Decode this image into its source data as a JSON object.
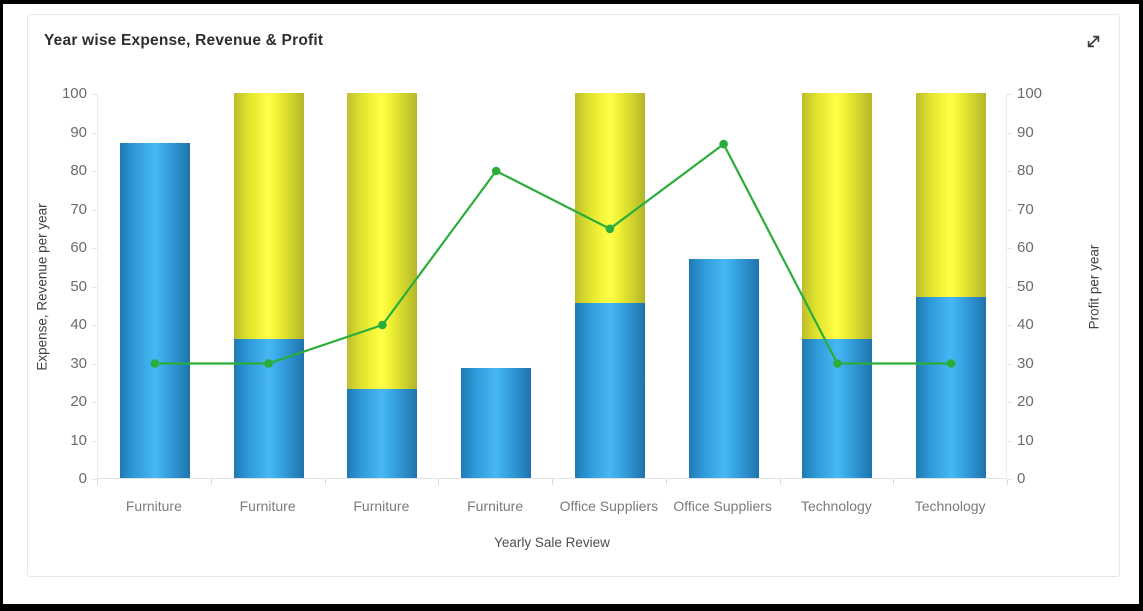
{
  "window": {
    "background": "#ffffff",
    "frame_color": "#000000"
  },
  "card": {
    "title": "Year wise Expense, Revenue & Profit",
    "controls": {
      "expand_icon": "expand-diagonal-arrows"
    }
  },
  "chart_data": {
    "type": "combo-stacked-bar-line",
    "title": "Year wise Expense, Revenue & Profit",
    "categories": [
      "Furniture",
      "Furniture",
      "Furniture",
      "Furniture",
      "Office Suppliers",
      "Office Suppliers",
      "Technology",
      "Technology"
    ],
    "series": [
      {
        "name": "Expense",
        "type": "bar",
        "stack": "total",
        "axis": "left",
        "color": "#2d9ade",
        "gradient": [
          "#1f79b2",
          "#47b8f3",
          "#1e74ad"
        ],
        "values": [
          87,
          36,
          23,
          28.5,
          45.5,
          57,
          36,
          47
        ]
      },
      {
        "name": "Revenue",
        "type": "bar",
        "stack": "total",
        "axis": "left",
        "color": "#e8ea2f",
        "gradient": [
          "#bcbf2c",
          "#ffff4a",
          "#b3b627"
        ],
        "values": [
          0,
          64,
          77,
          0,
          54.5,
          0,
          64,
          53
        ]
      },
      {
        "name": "Profit",
        "type": "line",
        "axis": "right",
        "color": "#2aad3a",
        "marker": "circle",
        "values": [
          30,
          30,
          40,
          80,
          65,
          87,
          30,
          30
        ]
      }
    ],
    "xlabel": "Yearly Sale Review",
    "ylabel_left": "Expense, Revenue per year",
    "ylabel_right": "Profit per year",
    "ylim_left": [
      0,
      100
    ],
    "ylim_right": [
      0,
      100
    ],
    "y_ticks": [
      0,
      10,
      20,
      30,
      40,
      50,
      60,
      70,
      80,
      90,
      100
    ],
    "grid": false,
    "legend": "none"
  }
}
